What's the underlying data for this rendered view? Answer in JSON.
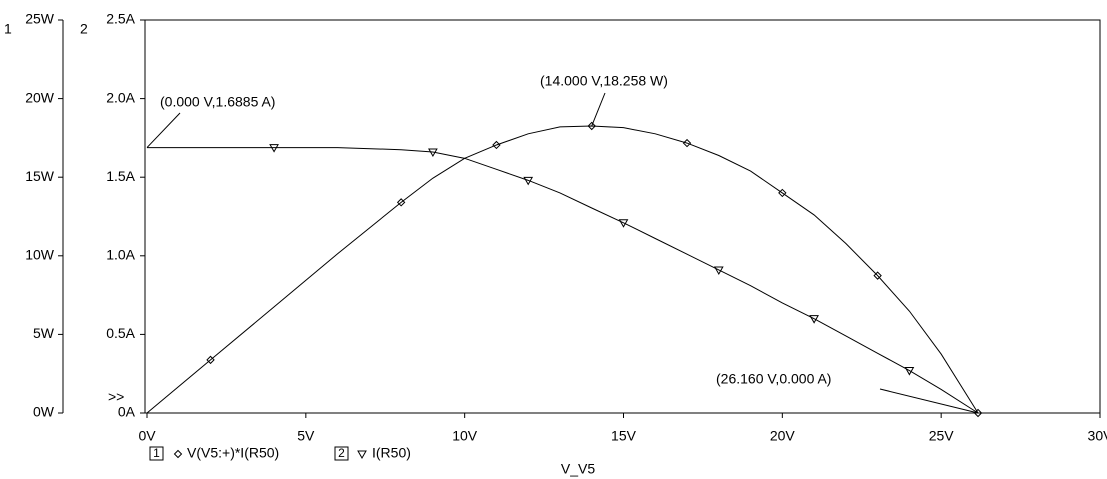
{
  "chart_data": {
    "type": "line",
    "y2_axis_id": "1",
    "y_axis_id": "2",
    "axis_marker": ">>",
    "x_title": "V_V5",
    "x": [
      0,
      2,
      4,
      6,
      8,
      9,
      10,
      11,
      12,
      13,
      14,
      15,
      16,
      17,
      18,
      19,
      20,
      21,
      22,
      23,
      24,
      25,
      26.16
    ],
    "series": [
      {
        "name": "V(V5:+)*I(R50)",
        "color": "#000000",
        "axis": "y2",
        "marker": "diamond",
        "values": [
          0,
          3.38,
          6.75,
          10.13,
          13.4,
          14.94,
          16.2,
          17.05,
          17.76,
          18.2,
          18.258,
          18.15,
          17.76,
          17.17,
          16.38,
          15.39,
          14.0,
          12.6,
          10.78,
          8.74,
          6.48,
          3.75,
          0
        ]
      },
      {
        "name": "I(R50)",
        "color": "#000000",
        "marker": "triangle",
        "values": [
          1.6885,
          1.6885,
          1.6885,
          1.688,
          1.675,
          1.66,
          1.62,
          1.55,
          1.48,
          1.4,
          1.304,
          1.21,
          1.11,
          1.01,
          0.91,
          0.81,
          0.7,
          0.6,
          0.49,
          0.38,
          0.27,
          0.15,
          0
        ]
      }
    ],
    "xlim": [
      0,
      30
    ],
    "xticks": [
      {
        "value": 0,
        "label": "0V"
      },
      {
        "value": 5,
        "label": "5V"
      },
      {
        "value": 10,
        "label": "10V"
      },
      {
        "value": 15,
        "label": "15V"
      },
      {
        "value": 20,
        "label": "20V"
      },
      {
        "value": 25,
        "label": "25V"
      },
      {
        "value": 30,
        "label": "30V"
      }
    ],
    "ylim": [
      0,
      2.5
    ],
    "yticks": [
      {
        "value": 0,
        "label": "0A"
      },
      {
        "value": 0.5,
        "label": "0.5A"
      },
      {
        "value": 1,
        "label": "1.0A"
      },
      {
        "value": 1.5,
        "label": "1.5A"
      },
      {
        "value": 2,
        "label": "2.0A"
      },
      {
        "value": 2.5,
        "label": "2.5A"
      }
    ],
    "y2lim": [
      0,
      25
    ],
    "y2ticks": [
      {
        "value": 0,
        "label": "0W"
      },
      {
        "value": 5,
        "label": "5W"
      },
      {
        "value": 10,
        "label": "10W"
      },
      {
        "value": 15,
        "label": "15W"
      },
      {
        "value": 20,
        "label": "20W"
      },
      {
        "value": 25,
        "label": "25W"
      }
    ],
    "annotations": [
      {
        "text": "(0.000 V,1.6885 A)",
        "x": 0,
        "y": 1.6885
      },
      {
        "text": "(14.000 V,18.258 W)",
        "x": 14,
        "y": 18.258,
        "axis": "y2"
      },
      {
        "text": "(26.160 V,0.000 A)",
        "x": 26.16,
        "y": 0
      }
    ]
  }
}
